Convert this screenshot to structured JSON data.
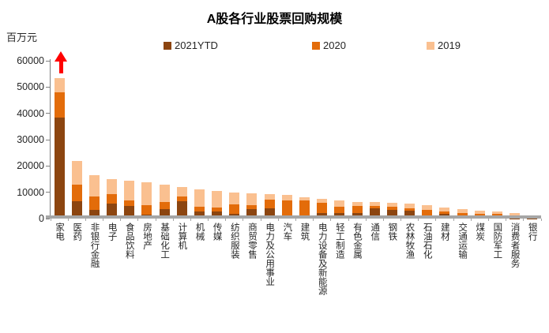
{
  "title": "A股各行业股票回购规模",
  "y_axis_unit": "百万元",
  "legend": [
    {
      "label": "2021YTD",
      "color": "#8C4510"
    },
    {
      "label": "2020",
      "color": "#E36C0A"
    },
    {
      "label": "2019",
      "color": "#FAC090"
    }
  ],
  "annotation": {
    "type": "up-arrow",
    "color": "#FF0000",
    "target_category": "家电"
  },
  "colors": {
    "axis": "#A6A6A6",
    "y_axis_line": "#808080",
    "text": "#262626"
  },
  "chart_data": {
    "type": "bar",
    "stacked": true,
    "grid": false,
    "legend_position": "top",
    "ylabel": "百万元",
    "ylim": [
      0,
      60000
    ],
    "yticks": [
      0,
      10000,
      20000,
      30000,
      40000,
      50000,
      60000
    ],
    "categories": [
      "家电",
      "医药",
      "非银行金融",
      "电子",
      "食品饮料",
      "房地产",
      "基础化工",
      "计算机",
      "机械",
      "传媒",
      "纺织服装",
      "商贸零售",
      "电力及公用事业",
      "汽车",
      "建筑",
      "电力设备及新能源",
      "轻工制造",
      "有色金属",
      "通信",
      "钢铁",
      "农林牧渔",
      "石油石化",
      "建材",
      "交通运输",
      "煤炭",
      "国防军工",
      "消费者服务",
      "银行"
    ],
    "series": [
      {
        "name": "2021YTD",
        "color": "#8C4510",
        "values": [
          38500,
          6500,
          3300,
          5600,
          4800,
          1400,
          3600,
          6500,
          2600,
          2800,
          1700,
          3500,
          4000,
          1000,
          1000,
          2000,
          2000,
          2000,
          3900,
          3300,
          3000,
          300,
          1800,
          1100,
          200,
          400,
          100,
          100
        ]
      },
      {
        "name": "2020",
        "color": "#E36C0A",
        "values": [
          9500,
          6500,
          5200,
          3800,
          2200,
          3700,
          2700,
          1800,
          1900,
          1300,
          3800,
          1500,
          3300,
          5800,
          6000,
          4000,
          2600,
          2800,
          800,
          1200,
          800,
          3100,
          900,
          900,
          1600,
          1400,
          1200,
          500
        ]
      },
      {
        "name": "2019",
        "color": "#FAC090",
        "values": [
          5500,
          9000,
          8000,
          5600,
          7300,
          8700,
          6500,
          3700,
          6500,
          6300,
          4500,
          4700,
          2100,
          2200,
          1000,
          1600,
          2200,
          1500,
          1500,
          1500,
          1900,
          1700,
          1500,
          1500,
          1100,
          800,
          700,
          500
        ]
      }
    ]
  }
}
